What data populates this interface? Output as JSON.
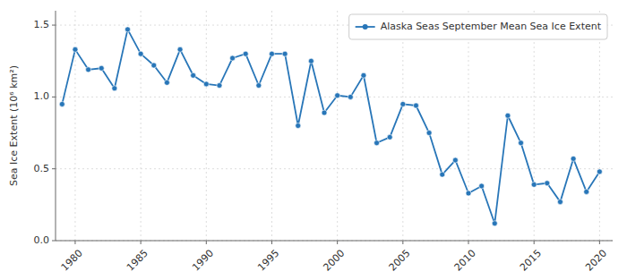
{
  "chart_data": {
    "type": "line",
    "ylabel": "Sea Ice Extent (10⁶ km²)",
    "x": [
      1979,
      1980,
      1981,
      1982,
      1983,
      1984,
      1985,
      1986,
      1987,
      1988,
      1989,
      1990,
      1991,
      1992,
      1993,
      1994,
      1995,
      1996,
      1997,
      1998,
      1999,
      2000,
      2001,
      2002,
      2003,
      2004,
      2005,
      2006,
      2007,
      2008,
      2009,
      2010,
      2011,
      2012,
      2013,
      2014,
      2015,
      2016,
      2017,
      2018,
      2019,
      2020
    ],
    "series": [
      {
        "name": "Alaska Seas September Mean Sea Ice Extent",
        "color": "#2876b8",
        "marker": "circle",
        "values": [
          0.95,
          1.33,
          1.19,
          1.2,
          1.06,
          1.47,
          1.3,
          1.22,
          1.1,
          1.33,
          1.15,
          1.09,
          1.08,
          1.27,
          1.3,
          1.08,
          1.3,
          1.3,
          0.8,
          1.25,
          0.89,
          1.01,
          1.0,
          1.15,
          0.68,
          0.72,
          0.95,
          0.94,
          0.75,
          0.46,
          0.56,
          0.33,
          0.38,
          0.12,
          0.87,
          0.68,
          0.39,
          0.4,
          0.27,
          0.57,
          0.34,
          0.48
        ]
      }
    ],
    "xlim": [
      1978.5,
      2021.0
    ],
    "xticks": [
      1980,
      1985,
      1990,
      1995,
      2000,
      2005,
      2010,
      2015,
      2020
    ],
    "ylim": [
      0,
      1.6
    ],
    "yticks": [
      {
        "value": 0,
        "label": "0.0"
      },
      0.5,
      {
        "value": 1.0,
        "label": "1.0"
      },
      1.5
    ],
    "grid": true,
    "legend": "upper right"
  }
}
